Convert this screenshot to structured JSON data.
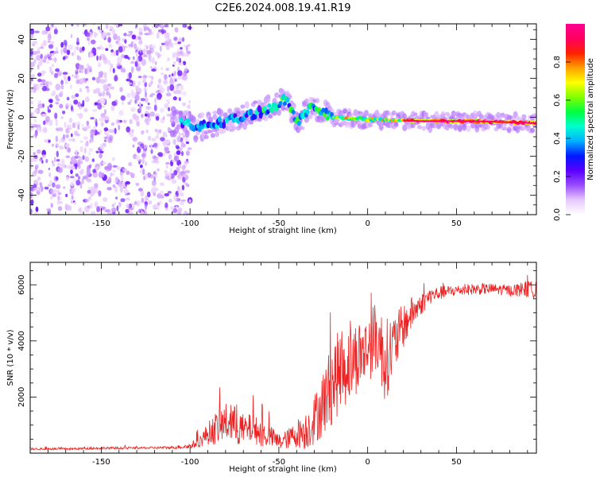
{
  "figure": {
    "title": "C2E6.2024.008.19.41.R19"
  },
  "chart_data": [
    {
      "type": "heatmap",
      "title": "C2E6.2024.008.19.41.R19",
      "xlabel": "Height of straight line (km)",
      "ylabel": "Frequency (Hz)",
      "xlim": [
        -190,
        95
      ],
      "ylim": [
        -50,
        48
      ],
      "xticks": [
        -150,
        -100,
        -50,
        0,
        50
      ],
      "yticks": [
        -40,
        -20,
        0,
        20,
        40
      ],
      "xtick_labels": [
        "-150",
        "-100",
        "-50",
        "0",
        "50"
      ],
      "ytick_labels": [
        "-40",
        "-20",
        "0",
        "20",
        "40"
      ],
      "colorbar": {
        "label": "Normalized spectral amplitude",
        "range": [
          0,
          1
        ],
        "ticks": [
          0.0,
          0.2,
          0.4,
          0.6,
          0.8
        ],
        "tick_labels": [
          "0.0",
          "0.2",
          "0.4",
          "0.6",
          "0.8"
        ],
        "colormap": [
          "#ffffff",
          "#e8c8ff",
          "#9a4dff",
          "#5a00ff",
          "#0018ff",
          "#00b0ff",
          "#00ffd0",
          "#00ff40",
          "#80ff00",
          "#ffff00",
          "#ffa000",
          "#ff2000",
          "#ff0060",
          "#ff0090"
        ]
      },
      "features": {
        "noise_region_x": [
          -190,
          -100
        ],
        "trace": [
          {
            "x": -100,
            "y": -6
          },
          {
            "x": -90,
            "y": -4
          },
          {
            "x": -80,
            "y": -2
          },
          {
            "x": -70,
            "y": 0
          },
          {
            "x": -60,
            "y": 3
          },
          {
            "x": -50,
            "y": 7
          },
          {
            "x": -45,
            "y": 10
          },
          {
            "x": -40,
            "y": -3
          },
          {
            "x": -35,
            "y": 2
          },
          {
            "x": -30,
            "y": 6
          },
          {
            "x": -25,
            "y": 2
          },
          {
            "x": -20,
            "y": 0
          },
          {
            "x": 0,
            "y": -1
          },
          {
            "x": 30,
            "y": -2
          },
          {
            "x": 60,
            "y": -2
          },
          {
            "x": 95,
            "y": -3
          }
        ]
      }
    },
    {
      "type": "line",
      "xlabel": "Height of straight line (km)",
      "ylabel": "SNR (10 * v/v)",
      "xlim": [
        -190,
        95
      ],
      "ylim": [
        0,
        6800
      ],
      "xticks": [
        -150,
        -100,
        -50,
        0,
        50
      ],
      "yticks": [
        2000,
        4000,
        6000
      ],
      "xtick_labels": [
        "-150",
        "-100",
        "-50",
        "0",
        "50"
      ],
      "ytick_labels": [
        "2000",
        "4000",
        "6000"
      ],
      "color": "#ee2222",
      "series": [
        {
          "name": "SNR",
          "x": [
            -190,
            -170,
            -150,
            -130,
            -110,
            -100,
            -95,
            -90,
            -85,
            -80,
            -75,
            -70,
            -65,
            -60,
            -55,
            -50,
            -45,
            -40,
            -35,
            -30,
            -25,
            -20,
            -15,
            -10,
            -5,
            0,
            5,
            10,
            15,
            20,
            25,
            30,
            35,
            40,
            50,
            60,
            70,
            80,
            90,
            95
          ],
          "y": [
            150,
            150,
            180,
            180,
            200,
            250,
            400,
            700,
            900,
            1100,
            1000,
            800,
            900,
            700,
            600,
            400,
            500,
            700,
            800,
            1200,
            1800,
            2500,
            3000,
            3200,
            3500,
            3700,
            4200,
            3300,
            3900,
            4500,
            5000,
            5300,
            5600,
            5700,
            5800,
            5850,
            5850,
            5800,
            5850,
            5800
          ],
          "noise": [
            40,
            40,
            40,
            40,
            50,
            100,
            200,
            400,
            600,
            700,
            700,
            600,
            500,
            500,
            400,
            300,
            350,
            500,
            700,
            900,
            1200,
            1500,
            1500,
            1400,
            1300,
            1200,
            1300,
            1500,
            1100,
            800,
            600,
            400,
            300,
            250,
            200,
            200,
            200,
            200,
            300,
            300
          ]
        }
      ]
    }
  ]
}
